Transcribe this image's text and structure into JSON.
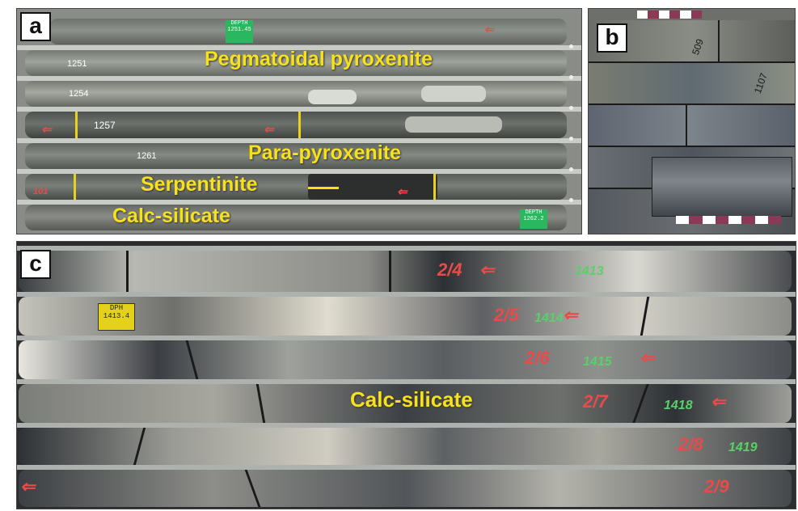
{
  "panels": {
    "a": {
      "letter": "a",
      "labels": {
        "pegmatoidal": "Pegmatoidal pyroxenite",
        "para": "Para-pyroxenite",
        "serpentinite": "Serpentinite",
        "calc": "Calc-silicate"
      },
      "markers": {
        "m1251": "1251",
        "m1254": "1254",
        "m1257": "1257",
        "m1261": "1261",
        "m101": "101"
      },
      "tags": {
        "top": "DEPTH 1251.45",
        "bottom": "DEPTH 1262.2"
      }
    },
    "b": {
      "letter": "b",
      "markers": {
        "m509": "509",
        "m1107": "1107"
      }
    },
    "c": {
      "letter": "c",
      "label": "Calc-silicate",
      "tag": "DPH 1413.4",
      "red_markers": {
        "r1": "2/4",
        "r2": "2/5",
        "r3": "2/6",
        "r4": "2/7",
        "r5": "2/8",
        "r6": "2/9"
      },
      "green_markers": {
        "g1": "1413",
        "g2": "1414",
        "g3": "1415",
        "g4": "1418",
        "g5": "1419"
      }
    }
  },
  "colors": {
    "label_yellow": "#f7e11c",
    "marker_red": "#ea4a4a",
    "marker_green": "#5bcf6a",
    "core_dark": "#2b2d30",
    "core_grey": "#7d8180"
  }
}
